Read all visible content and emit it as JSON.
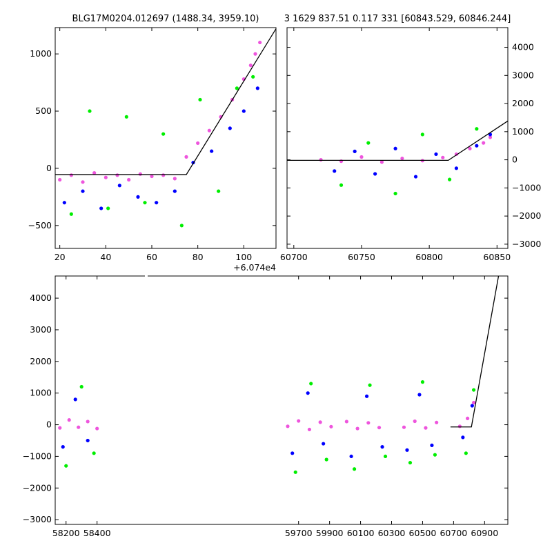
{
  "titles": {
    "left": "BLG17M0204.012697 (1488.34, 3959.10)",
    "right": "3 1629 837.51 0.117 331 [60843.529, 60846.244]"
  },
  "colors": {
    "series_blue": "#0000ff",
    "series_green": "#00ee00",
    "series_magenta": "#ee55dd",
    "model_line": "#000000"
  },
  "chart_data": [
    {
      "type": "scatter",
      "panel": "top-left",
      "x_offset_label": "+6.074e4",
      "xlim": [
        18,
        114
      ],
      "ylim": [
        -700,
        1230
      ],
      "xticks": [
        20,
        40,
        60,
        80,
        100
      ],
      "yticks": [
        -500,
        0,
        500,
        1000
      ],
      "ytick_side": "left",
      "series": [
        {
          "color": "magenta",
          "x": [
            20,
            25,
            30,
            35,
            40,
            45,
            50,
            55,
            60,
            65,
            70,
            75,
            80,
            85,
            90,
            95,
            100,
            103,
            105,
            107
          ],
          "y": [
            -100,
            -60,
            -120,
            -40,
            -80,
            -60,
            -100,
            -50,
            -70,
            -60,
            -90,
            100,
            220,
            330,
            450,
            600,
            780,
            900,
            1000,
            1100
          ]
        },
        {
          "color": "blue",
          "x": [
            22,
            30,
            38,
            46,
            54,
            62,
            70,
            78,
            86,
            94,
            100,
            106
          ],
          "y": [
            -300,
            -200,
            -350,
            -150,
            -250,
            -300,
            -200,
            50,
            150,
            350,
            500,
            700
          ]
        },
        {
          "color": "green",
          "x": [
            25,
            33,
            41,
            49,
            57,
            65,
            73,
            81,
            89,
            97,
            104
          ],
          "y": [
            -400,
            500,
            -350,
            450,
            -300,
            300,
            -500,
            600,
            -200,
            700,
            800
          ]
        }
      ],
      "model_line": {
        "x": [
          18,
          75,
          114
        ],
        "y": [
          -55,
          -55,
          1220
        ]
      }
    },
    {
      "type": "scatter",
      "panel": "top-right",
      "xlim": [
        60695,
        60858
      ],
      "ylim": [
        -3150,
        4700
      ],
      "xticks": [
        60700,
        60750,
        60800,
        60850
      ],
      "yticks": [
        -3000,
        -2000,
        -1000,
        0,
        1000,
        2000,
        3000,
        4000
      ],
      "ytick_side": "right",
      "series": [
        {
          "color": "magenta",
          "x": [
            60720,
            60735,
            60750,
            60765,
            60780,
            60795,
            60810,
            60820,
            60830,
            60840,
            60845
          ],
          "y": [
            0,
            -50,
            100,
            -80,
            50,
            -30,
            80,
            200,
            400,
            600,
            800
          ]
        },
        {
          "color": "blue",
          "x": [
            60730,
            60745,
            60760,
            60775,
            60790,
            60805,
            60820,
            60835,
            60845
          ],
          "y": [
            -400,
            300,
            -500,
            400,
            -600,
            200,
            -300,
            500,
            900
          ]
        },
        {
          "color": "green",
          "x": [
            60735,
            60755,
            60775,
            60795,
            60815,
            60835
          ],
          "y": [
            -900,
            600,
            -1200,
            900,
            -700,
            1100
          ]
        }
      ],
      "model_line": {
        "x": [
          60695,
          60814,
          60858
        ],
        "y": [
          -20,
          -20,
          1380
        ]
      }
    },
    {
      "type": "scatter",
      "panel": "bottom",
      "xlim": [
        58130,
        61050
      ],
      "ylim": [
        -3150,
        4700
      ],
      "xticks": [
        58200,
        58400,
        59700,
        59900,
        60100,
        60300,
        60500,
        60700,
        60900
      ],
      "yticks": [
        -3000,
        -2000,
        -1000,
        0,
        1000,
        2000,
        3000,
        4000
      ],
      "ytick_side": "left",
      "series": [
        {
          "color": "magenta",
          "x": [
            58160,
            58220,
            58280,
            58340,
            58400,
            59630,
            59700,
            59770,
            59840,
            59910,
            60010,
            60080,
            60150,
            60220,
            60380,
            60450,
            60520,
            60590,
            60740,
            60790,
            60830
          ],
          "y": [
            -100,
            150,
            -80,
            100,
            -120,
            -50,
            120,
            -150,
            80,
            -60,
            100,
            -120,
            60,
            -90,
            -80,
            110,
            -100,
            70,
            -50,
            200,
            700
          ]
        },
        {
          "color": "blue",
          "x": [
            58180,
            58260,
            58340,
            59660,
            59760,
            59860,
            60040,
            60140,
            60240,
            60400,
            60480,
            60560,
            60760,
            60820
          ],
          "y": [
            -700,
            800,
            -500,
            -900,
            1000,
            -600,
            -1000,
            900,
            -700,
            -800,
            950,
            -650,
            -400,
            600
          ]
        },
        {
          "color": "green",
          "x": [
            58200,
            58300,
            58380,
            59680,
            59780,
            59880,
            60060,
            60160,
            60260,
            60420,
            60500,
            60580,
            60780,
            60830
          ],
          "y": [
            -1300,
            1200,
            -900,
            -1500,
            1300,
            -1100,
            -1400,
            1250,
            -1000,
            -1200,
            1350,
            -950,
            -900,
            1100
          ]
        }
      ],
      "model_line": {
        "x": [
          60680,
          60815,
          60990
        ],
        "y": [
          -70,
          -70,
          4700
        ]
      }
    }
  ]
}
